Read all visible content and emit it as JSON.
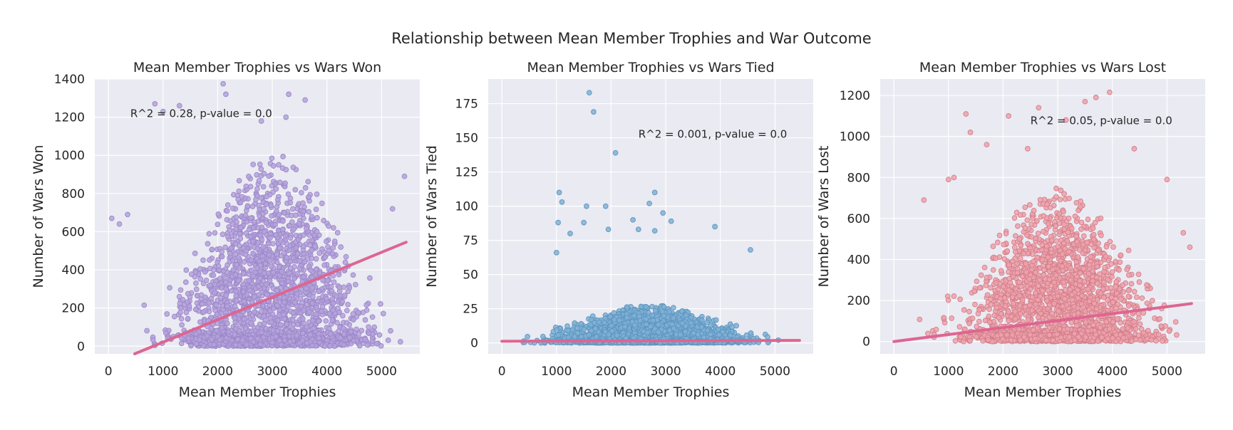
{
  "figure": {
    "title": "Relationship between Mean Member Trophies and War Outcome"
  },
  "chart_data": [
    {
      "type": "scatter",
      "title": "Mean Member Trophies vs Wars Won",
      "xlabel": "Mean Member Trophies",
      "ylabel": "Number of Wars Won",
      "xlim": [
        -250,
        5700
      ],
      "ylim": [
        -40,
        1400
      ],
      "xticks": [
        0,
        1000,
        2000,
        3000,
        4000,
        5000
      ],
      "yticks": [
        0,
        200,
        400,
        600,
        800,
        1000,
        1200,
        1400
      ],
      "grid": true,
      "point_color": "#b4a2dc",
      "point_edge": "#9c87c8",
      "annotation": "R^2 = 0.28, p-value = 0.0",
      "regression": {
        "x": [
          480,
          5450
        ],
        "y": [
          -40,
          545
        ],
        "color": "#dd6591"
      },
      "cloud": {
        "center": 3000,
        "peak_median": 340,
        "peak_spread": 520,
        "max_y": 1380
      },
      "outliers": [
        [
          2100,
          1375
        ],
        [
          2150,
          1320
        ],
        [
          3300,
          1320
        ],
        [
          3600,
          1290
        ],
        [
          850,
          1270
        ],
        [
          1300,
          1260
        ],
        [
          1000,
          1230
        ],
        [
          3250,
          1200
        ],
        [
          2800,
          1180
        ],
        [
          5420,
          890
        ],
        [
          5200,
          720
        ],
        [
          350,
          690
        ],
        [
          60,
          670
        ],
        [
          200,
          640
        ]
      ]
    },
    {
      "type": "scatter",
      "title": "Mean Member Trophies vs Wars Tied",
      "xlabel": "Mean Member Trophies",
      "ylabel": "Number of Wars Tied",
      "xlim": [
        -250,
        5700
      ],
      "ylim": [
        -8,
        193
      ],
      "xticks": [
        0,
        1000,
        2000,
        3000,
        4000,
        5000
      ],
      "yticks": [
        0,
        25,
        50,
        75,
        100,
        125,
        150,
        175
      ],
      "grid": true,
      "point_color": "#7fb2d6",
      "point_edge": "#5e95bf",
      "annotation": "R^2 = 0.001, p-value = 0.0",
      "regression": {
        "x": [
          0,
          5450
        ],
        "y": [
          1.2,
          1.8
        ],
        "color": "#dd6591"
      },
      "cloud": {
        "center": 2700,
        "peak_median": 8,
        "peak_spread": 16,
        "max_y": 60
      },
      "outliers": [
        [
          1600,
          183
        ],
        [
          1680,
          169
        ],
        [
          2080,
          139
        ],
        [
          1050,
          110
        ],
        [
          2800,
          110
        ],
        [
          1100,
          103
        ],
        [
          2700,
          102
        ],
        [
          1900,
          100
        ],
        [
          1550,
          100
        ],
        [
          1030,
          88
        ],
        [
          2400,
          90
        ],
        [
          3100,
          89
        ],
        [
          1500,
          88
        ],
        [
          3900,
          85
        ],
        [
          1950,
          83
        ],
        [
          2500,
          83
        ],
        [
          1250,
          80
        ],
        [
          2950,
          95
        ],
        [
          4550,
          68
        ],
        [
          1000,
          66
        ],
        [
          2800,
          82
        ]
      ]
    },
    {
      "type": "scatter",
      "title": "Mean Member Trophies vs Wars Lost",
      "xlabel": "Mean Member Trophies",
      "ylabel": "Number of Wars Lost",
      "xlim": [
        -250,
        5700
      ],
      "ylim": [
        -60,
        1280
      ],
      "xticks": [
        0,
        1000,
        2000,
        3000,
        4000,
        5000
      ],
      "yticks": [
        0,
        200,
        400,
        600,
        800,
        1000,
        1200
      ],
      "grid": true,
      "point_color": "#eea2ac",
      "point_edge": "#d27f8a",
      "annotation": "R^2 = 0.05, p-value = 0.0",
      "regression": {
        "x": [
          0,
          5450
        ],
        "y": [
          0,
          185
        ],
        "color": "#dd6591"
      },
      "cloud": {
        "center": 3000,
        "peak_median": 250,
        "peak_spread": 400,
        "max_y": 1100
      },
      "outliers": [
        [
          3950,
          1215
        ],
        [
          3700,
          1190
        ],
        [
          3500,
          1170
        ],
        [
          2650,
          1140
        ],
        [
          1320,
          1110
        ],
        [
          2100,
          1100
        ],
        [
          3150,
          1080
        ],
        [
          1400,
          1020
        ],
        [
          1700,
          960
        ],
        [
          2450,
          940
        ],
        [
          4400,
          940
        ],
        [
          1100,
          800
        ],
        [
          1000,
          790
        ],
        [
          5000,
          790
        ],
        [
          550,
          690
        ],
        [
          5300,
          530
        ],
        [
          5420,
          460
        ]
      ]
    }
  ]
}
